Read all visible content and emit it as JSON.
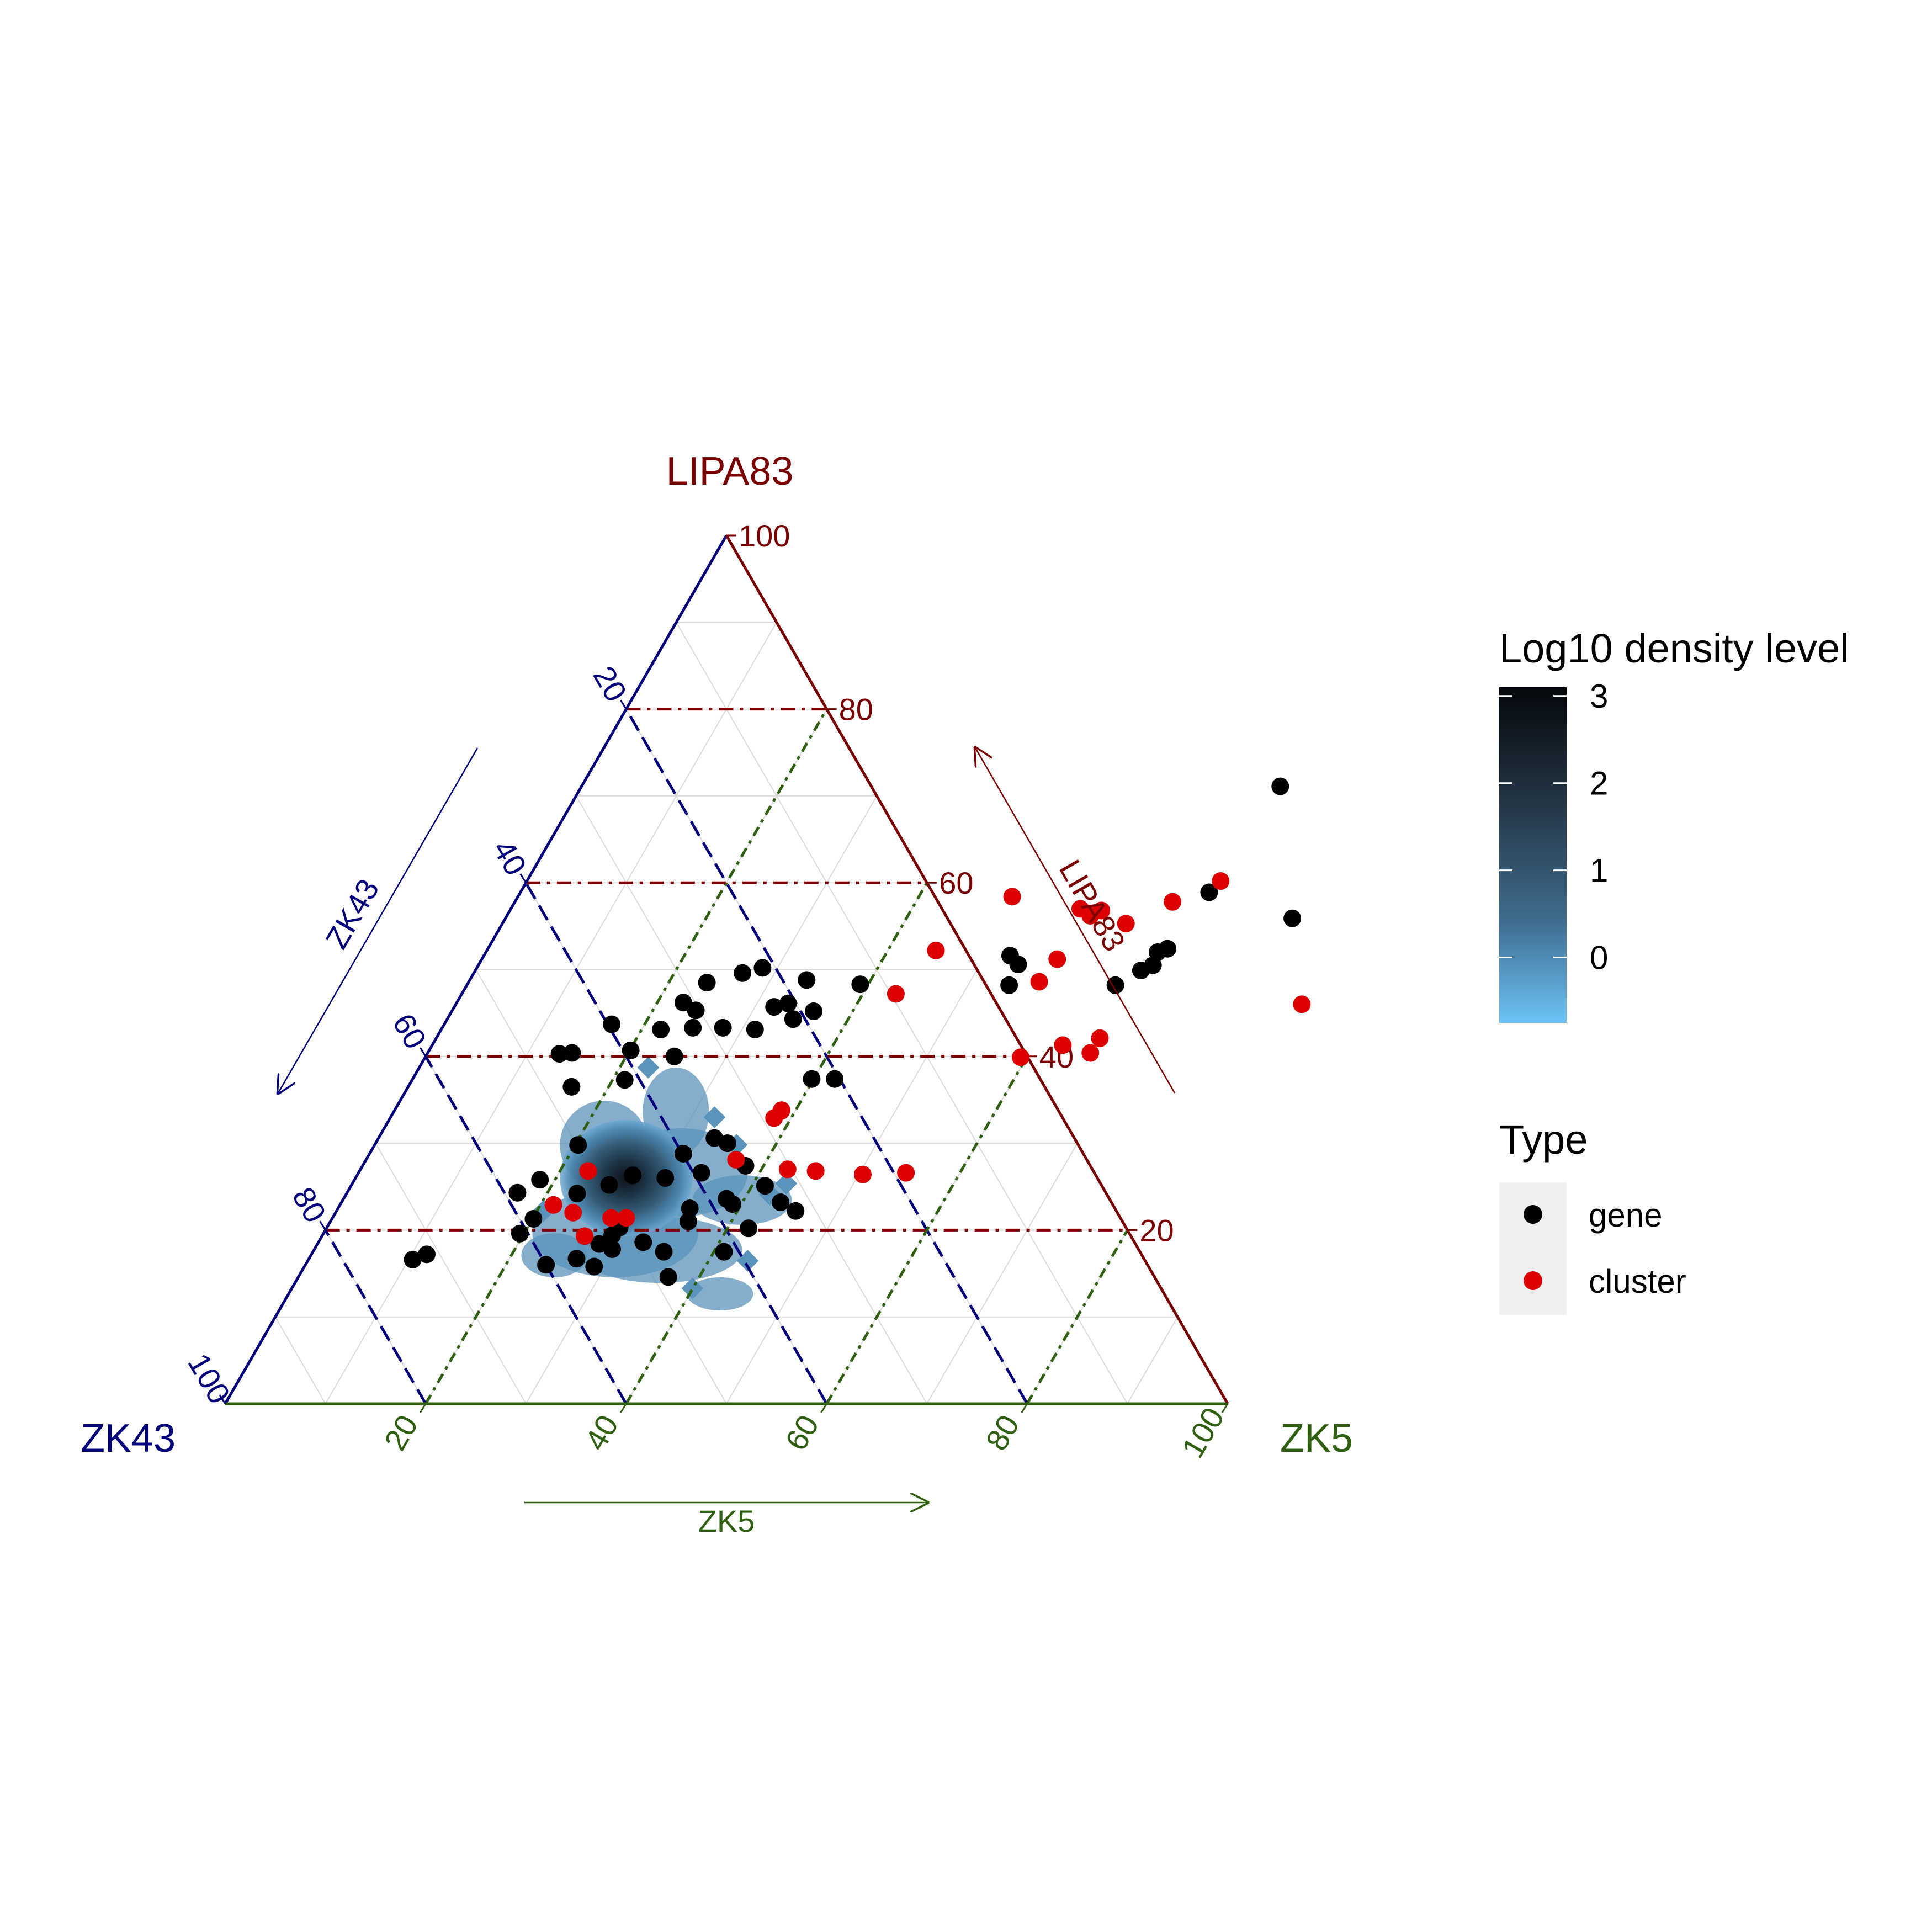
{
  "chart_data": {
    "type": "scatter",
    "subtype": "ternary",
    "axes": {
      "top": {
        "label": "LIPA83",
        "color": "#7a0000"
      },
      "left": {
        "label": "ZK43",
        "color": "#00007a"
      },
      "right": {
        "label": "ZK5",
        "color": "#2e6010"
      }
    },
    "ticks": {
      "top": [
        "20",
        "40",
        "60",
        "80",
        "100"
      ],
      "left": [
        "20",
        "40",
        "60",
        "80",
        "100"
      ],
      "right": [
        "20",
        "40",
        "60",
        "80",
        "100"
      ]
    },
    "grid": true,
    "density": {
      "legend_title": "Log10 density level",
      "breaks": [
        "3",
        "2",
        "1",
        "0"
      ],
      "color_low": "#6cc3f7",
      "color_high": "#05080c",
      "peak": {
        "zk43": 47,
        "zk5": 27,
        "lipa83": 26
      }
    },
    "legend": {
      "title": "Type",
      "position": "right",
      "entries": [
        {
          "label": "gene",
          "color": "#000000"
        },
        {
          "label": "cluster",
          "color": "#dd0000"
        }
      ]
    },
    "series": [
      {
        "name": "gene",
        "color": "#000000",
        "points": [
          [
            69.7,
            71.1
          ],
          [
            68.7,
            58.9
          ],
          [
            78.5,
            55.9
          ],
          [
            67.8,
            52.4
          ],
          [
            64.7,
            48.2
          ],
          [
            67.0,
            52.0
          ],
          [
            67.3,
            50.5
          ],
          [
            66.4,
            49.9
          ],
          [
            54.1,
            48.2
          ],
          [
            52.5,
            51.6
          ],
          [
            53.8,
            50.6
          ],
          [
            42.1,
            37.4
          ],
          [
            39.8,
            37.4
          ],
          [
            31.3,
            43.1
          ],
          [
            24.8,
            40.0
          ],
          [
            31.9,
            45.7
          ],
          [
            33.1,
            46.1
          ],
          [
            20.1,
            40.7
          ],
          [
            25.0,
            43.3
          ],
          [
            34.5,
            44.3
          ],
          [
            21.2,
            37.3
          ],
          [
            28.0,
            43.3
          ],
          [
            36.1,
            45.2
          ],
          [
            39.2,
            48.3
          ],
          [
            33.6,
            48.8
          ],
          [
            28.5,
            50.2
          ],
          [
            26.8,
            49.6
          ],
          [
            23.8,
            48.5
          ],
          [
            22.6,
            46.2
          ],
          [
            24.3,
            45.3
          ],
          [
            21.9,
            43.1
          ],
          [
            16.7,
            43.7
          ],
          [
            14.4,
            40.4
          ],
          [
            13.2,
            40.3
          ],
          [
            16.3,
            36.5
          ],
          [
            20.3,
            29.8
          ],
          [
            31.3,
            28.8
          ],
          [
            33.5,
            30.6
          ],
          [
            35.1,
            30.0
          ],
          [
            38.2,
            27.4
          ],
          [
            43.8,
            23.2
          ],
          [
            45.8,
            22.2
          ],
          [
            42.1,
            20.2
          ],
          [
            29.2,
            20.3
          ],
          [
            28.9,
            19.4
          ],
          [
            29.7,
            17.8
          ],
          [
            28.1,
            18.4
          ],
          [
            32.4,
            18.6
          ],
          [
            20.1,
            21.3
          ],
          [
            19.6,
            19.6
          ],
          [
            26.7,
            16.7
          ],
          [
            24.0,
            16.0
          ],
          [
            28.9,
            15.8
          ],
          [
            36.9,
            14.6
          ],
          [
            35.0,
            17.5
          ],
          [
            41.0,
            17.5
          ],
          [
            35.7,
            21.0
          ],
          [
            39.1,
            23.0
          ],
          [
            23.0,
            24.2
          ],
          [
            25.7,
            25.2
          ],
          [
            18.5,
            25.8
          ],
          [
            17.0,
            24.3
          ],
          [
            27.5,
            26.3
          ],
          [
            30.9,
            26.0
          ],
          [
            10.4,
            16.6
          ],
          [
            11.5,
            17.2
          ],
          [
            35.1,
            22.5
          ],
          [
            34.2,
            26.6
          ],
          [
            41.3,
            25.1
          ],
          [
            38.2,
            23.6
          ]
        ]
      },
      {
        "name": "cluster",
        "color": "#dd0000",
        "points": [
          [
            69.2,
            60.2
          ],
          [
            65.6,
            57.8
          ],
          [
            62.2,
            55.3
          ],
          [
            56.8,
            57.0
          ],
          [
            57.4,
            51.2
          ],
          [
            59.0,
            56.8
          ],
          [
            58.2,
            56.2
          ],
          [
            84.4,
            46.0
          ],
          [
            43.3,
            47.2
          ],
          [
            56.9,
            48.6
          ],
          [
            49.3,
            58.4
          ],
          [
            44.8,
            52.2
          ],
          [
            59.4,
            39.9
          ],
          [
            62.9,
            41.3
          ],
          [
            66.1,
            40.4
          ],
          [
            66.2,
            42.1
          ],
          [
            36.9,
            28.1
          ],
          [
            42.6,
            27.0
          ],
          [
            45.5,
            26.8
          ],
          [
            50.4,
            26.4
          ],
          [
            54.6,
            26.6
          ],
          [
            22.8,
            26.8
          ],
          [
            21.3,
            22.9
          ],
          [
            23.7,
            22.0
          ],
          [
            27.8,
            21.4
          ],
          [
            29.3,
            21.4
          ],
          [
            26.2,
            19.3
          ],
          [
            38.6,
            33.7
          ],
          [
            38.6,
            33.8
          ],
          [
            38.3,
            32.9
          ]
        ]
      }
    ]
  }
}
